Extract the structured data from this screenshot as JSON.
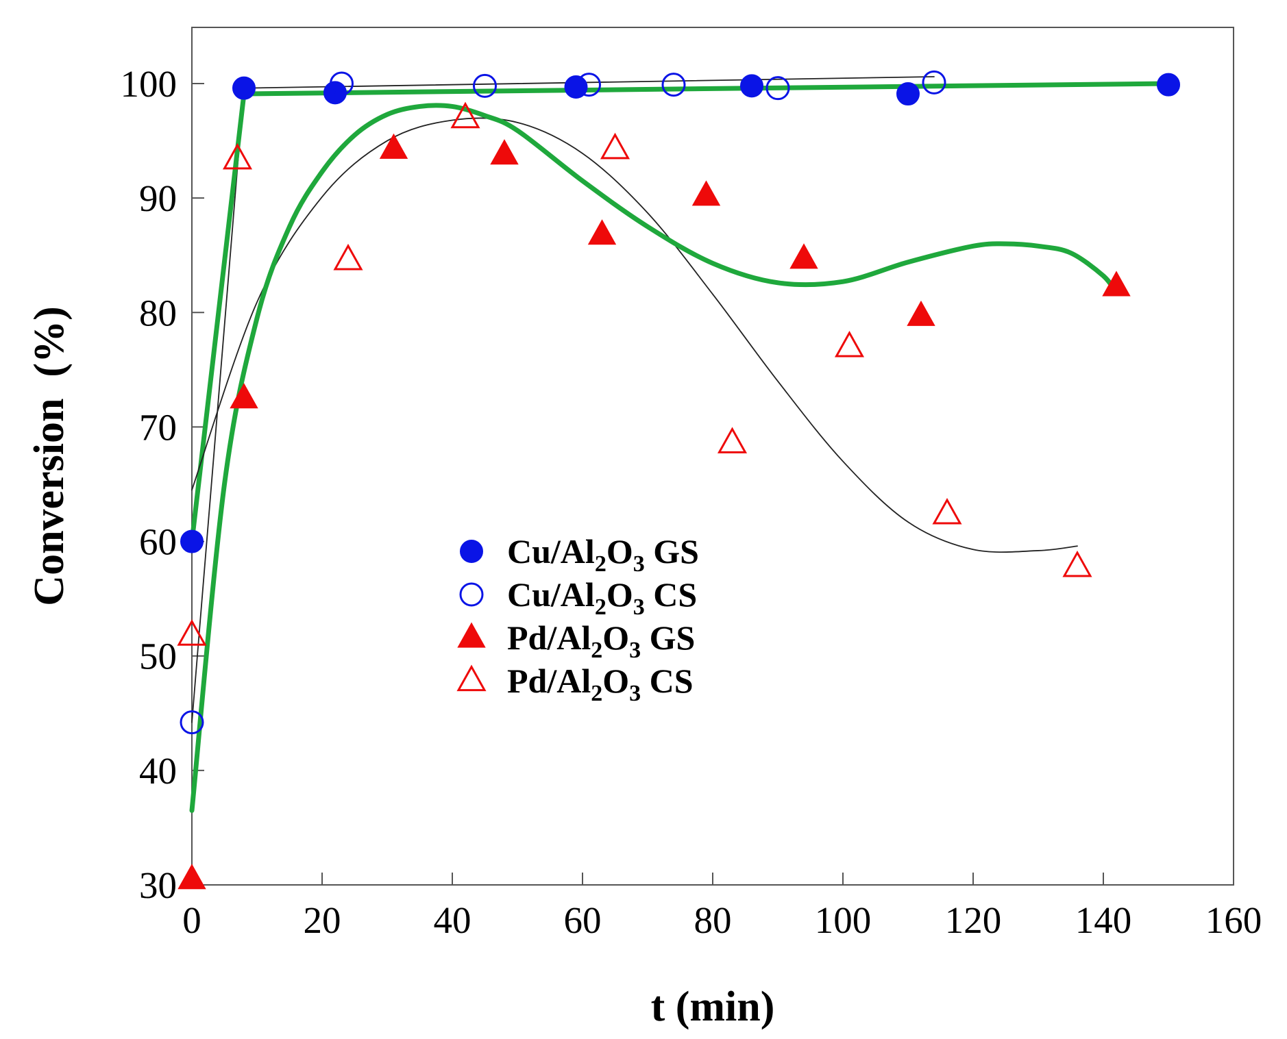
{
  "chart_data": {
    "type": "scatter",
    "xlabel": "t (min)",
    "ylabel": "Conversion  (%)",
    "xlim": [
      0,
      160
    ],
    "ylim": [
      30,
      105
    ],
    "x_ticks": [
      0,
      20,
      40,
      60,
      80,
      100,
      120,
      140,
      160
    ],
    "y_ticks": [
      30,
      40,
      50,
      60,
      70,
      80,
      90,
      100
    ],
    "grid": false,
    "legend_position": "center-left",
    "colors": {
      "cu": "#0a14e6",
      "pd": "#ee0a0a",
      "fit_green": "#1fa83c",
      "fit_black": "#222222"
    },
    "series": [
      {
        "name_parts": [
          "Cu/Al",
          "2",
          "O",
          "3",
          " GS"
        ],
        "marker": "filled-circle",
        "color": "#0a14e6",
        "x": [
          0,
          8,
          22,
          59,
          86,
          110,
          150
        ],
        "y": [
          60,
          99.6,
          99.2,
          99.7,
          99.8,
          99.1,
          99.9
        ]
      },
      {
        "name_parts": [
          "Cu/Al",
          "2",
          "O",
          "3",
          " CS"
        ],
        "marker": "open-circle",
        "color": "#0a14e6",
        "x": [
          0,
          23,
          45,
          61,
          74,
          90,
          114
        ],
        "y": [
          44.2,
          100,
          99.8,
          99.9,
          99.9,
          99.6,
          100.1
        ]
      },
      {
        "name_parts": [
          "Pd/Al",
          "2",
          "O",
          "3",
          " GS"
        ],
        "marker": "filled-triangle",
        "color": "#ee0a0a",
        "x": [
          0,
          8,
          31,
          48,
          63,
          79,
          94,
          112,
          142
        ],
        "y": [
          30.5,
          72.5,
          94.3,
          93.8,
          86.8,
          90.2,
          84.7,
          79.7,
          82.3
        ]
      },
      {
        "name_parts": [
          "Pd/Al",
          "2",
          "O",
          "3",
          " CS"
        ],
        "marker": "open-triangle",
        "color": "#ee0a0a",
        "x": [
          0,
          7,
          24,
          42,
          65,
          83,
          101,
          116,
          136
        ],
        "y": [
          51.8,
          93.4,
          84.6,
          97,
          94.3,
          68.6,
          77,
          62.4,
          57.8
        ]
      }
    ],
    "fit_curves": [
      {
        "id": "cu-cs-fit",
        "color": "#222222",
        "x": [
          0,
          8,
          114
        ],
        "y": [
          44.2,
          99.6,
          100.6
        ]
      },
      {
        "id": "cu-gs-fit",
        "color": "#1fa83c",
        "x": [
          0,
          8,
          150
        ],
        "y": [
          60,
          99.1,
          100
        ]
      },
      {
        "id": "pd-cs-fit",
        "color": "#222222",
        "x": [
          0,
          10,
          20,
          30,
          40,
          50,
          60,
          70,
          80,
          90,
          100,
          110,
          120,
          130,
          136
        ],
        "y": [
          64.5,
          80.9,
          90.1,
          95.0,
          96.8,
          96.6,
          93.9,
          88.7,
          81.6,
          74.0,
          67.0,
          61.7,
          59.3,
          59.2,
          59.6
        ]
      },
      {
        "id": "pd-gs-fit",
        "color": "#1fa83c",
        "x": [
          0,
          5,
          10,
          15,
          20,
          25,
          30,
          35,
          40,
          45,
          50,
          60,
          70,
          80,
          90,
          100,
          110,
          120,
          125,
          130,
          135,
          140,
          142
        ],
        "y": [
          36.5,
          65,
          79.5,
          87.5,
          92.3,
          95.5,
          97.3,
          98.0,
          98.0,
          97.2,
          95.9,
          91.5,
          87.5,
          84.3,
          82.6,
          82.7,
          84.4,
          85.8,
          86.0,
          85.8,
          85.2,
          83.2,
          81.7
        ]
      }
    ]
  }
}
